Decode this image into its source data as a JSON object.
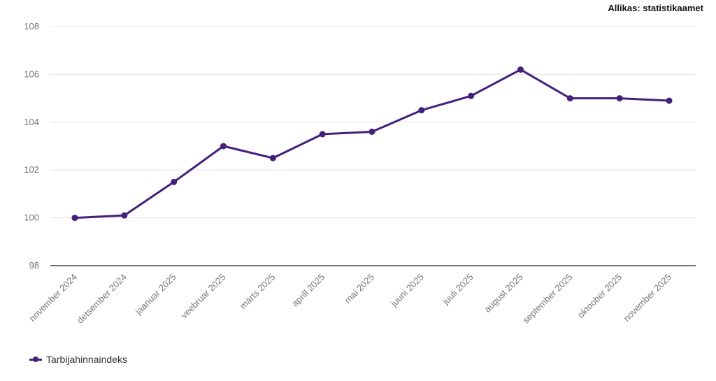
{
  "source_label": "Allikas: statistikaamet",
  "colors": {
    "series": "#44207a",
    "grid": "#e3e3e3",
    "axis": "#444444"
  },
  "chart_data": {
    "type": "line",
    "categories": [
      "november 2024",
      "detsember 2024",
      "jaanuar 2025",
      "veebruar 2025",
      "märts 2025",
      "aprill 2025",
      "mai 2025",
      "juuni 2025",
      "juuli 2025",
      "august 2025",
      "september 2025",
      "oktoober 2025",
      "november 2025"
    ],
    "series": [
      {
        "name": "Tarbijahinnaindeks",
        "values": [
          100.0,
          100.1,
          101.5,
          103.0,
          102.5,
          103.5,
          103.6,
          104.5,
          105.1,
          106.2,
          105.0,
          105.0,
          104.9
        ]
      }
    ],
    "ylim": [
      98,
      108
    ],
    "yticks": [
      98,
      100,
      102,
      104,
      106,
      108
    ],
    "title": "",
    "xlabel": "",
    "ylabel": "",
    "grid": true,
    "legend": "bottom-left"
  }
}
